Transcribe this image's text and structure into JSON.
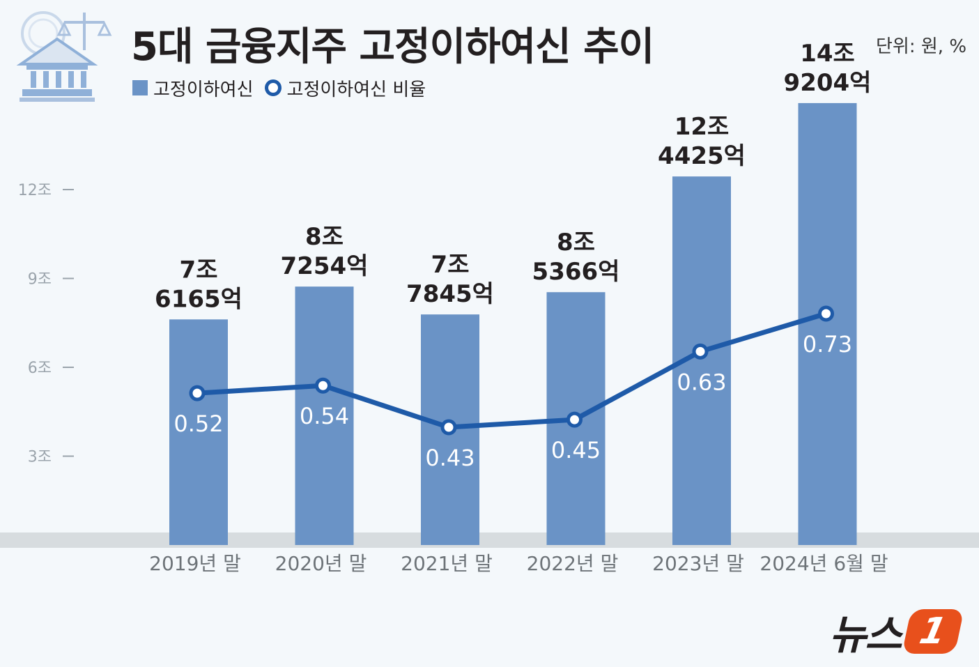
{
  "header": {
    "title": "5대 금융지주 고정이하여신 추이",
    "unit": "단위: 원, %"
  },
  "legend": {
    "bar_label": "고정이하여신",
    "line_label": "고정이하여신 비율"
  },
  "brand": {
    "name": "뉴스",
    "badge": "1"
  },
  "colors": {
    "bar": "#6a93c6",
    "line": "#1e5aa8",
    "background": "#f4f8fb",
    "brand_accent": "#e8501c"
  },
  "chart_data": {
    "type": "bar",
    "title": "5대 금융지주 고정이하여신 추이",
    "categories": [
      "2019년 말",
      "2020년 말",
      "2021년 말",
      "2022년 말",
      "2023년 말",
      "2024년 6월 말"
    ],
    "series": [
      {
        "name": "고정이하여신",
        "type": "bar",
        "unit": "조 원",
        "values": [
          7.6165,
          8.7254,
          7.7845,
          8.5366,
          12.4425,
          14.9204
        ],
        "labels": [
          [
            "7조",
            "6165억"
          ],
          [
            "8조",
            "7254억"
          ],
          [
            "7조",
            "7845억"
          ],
          [
            "8조",
            "5366억"
          ],
          [
            "12조",
            "4425억"
          ],
          [
            "14조",
            "9204억"
          ]
        ]
      },
      {
        "name": "고정이하여신 비율",
        "type": "line",
        "unit": "%",
        "values": [
          0.52,
          0.54,
          0.43,
          0.45,
          0.63,
          0.73
        ],
        "labels": [
          "0.52",
          "0.54",
          "0.43",
          "0.45",
          "0.63",
          "0.73"
        ]
      }
    ],
    "y_axis": {
      "ticks": [
        3,
        6,
        9,
        12
      ],
      "tick_labels": [
        "3조",
        "6조",
        "9조",
        "12조"
      ],
      "ylim": [
        0,
        15
      ]
    },
    "line_axis": {
      "ylim": [
        0.2,
        0.83
      ]
    },
    "grid": false,
    "legend_position": "top-left"
  }
}
